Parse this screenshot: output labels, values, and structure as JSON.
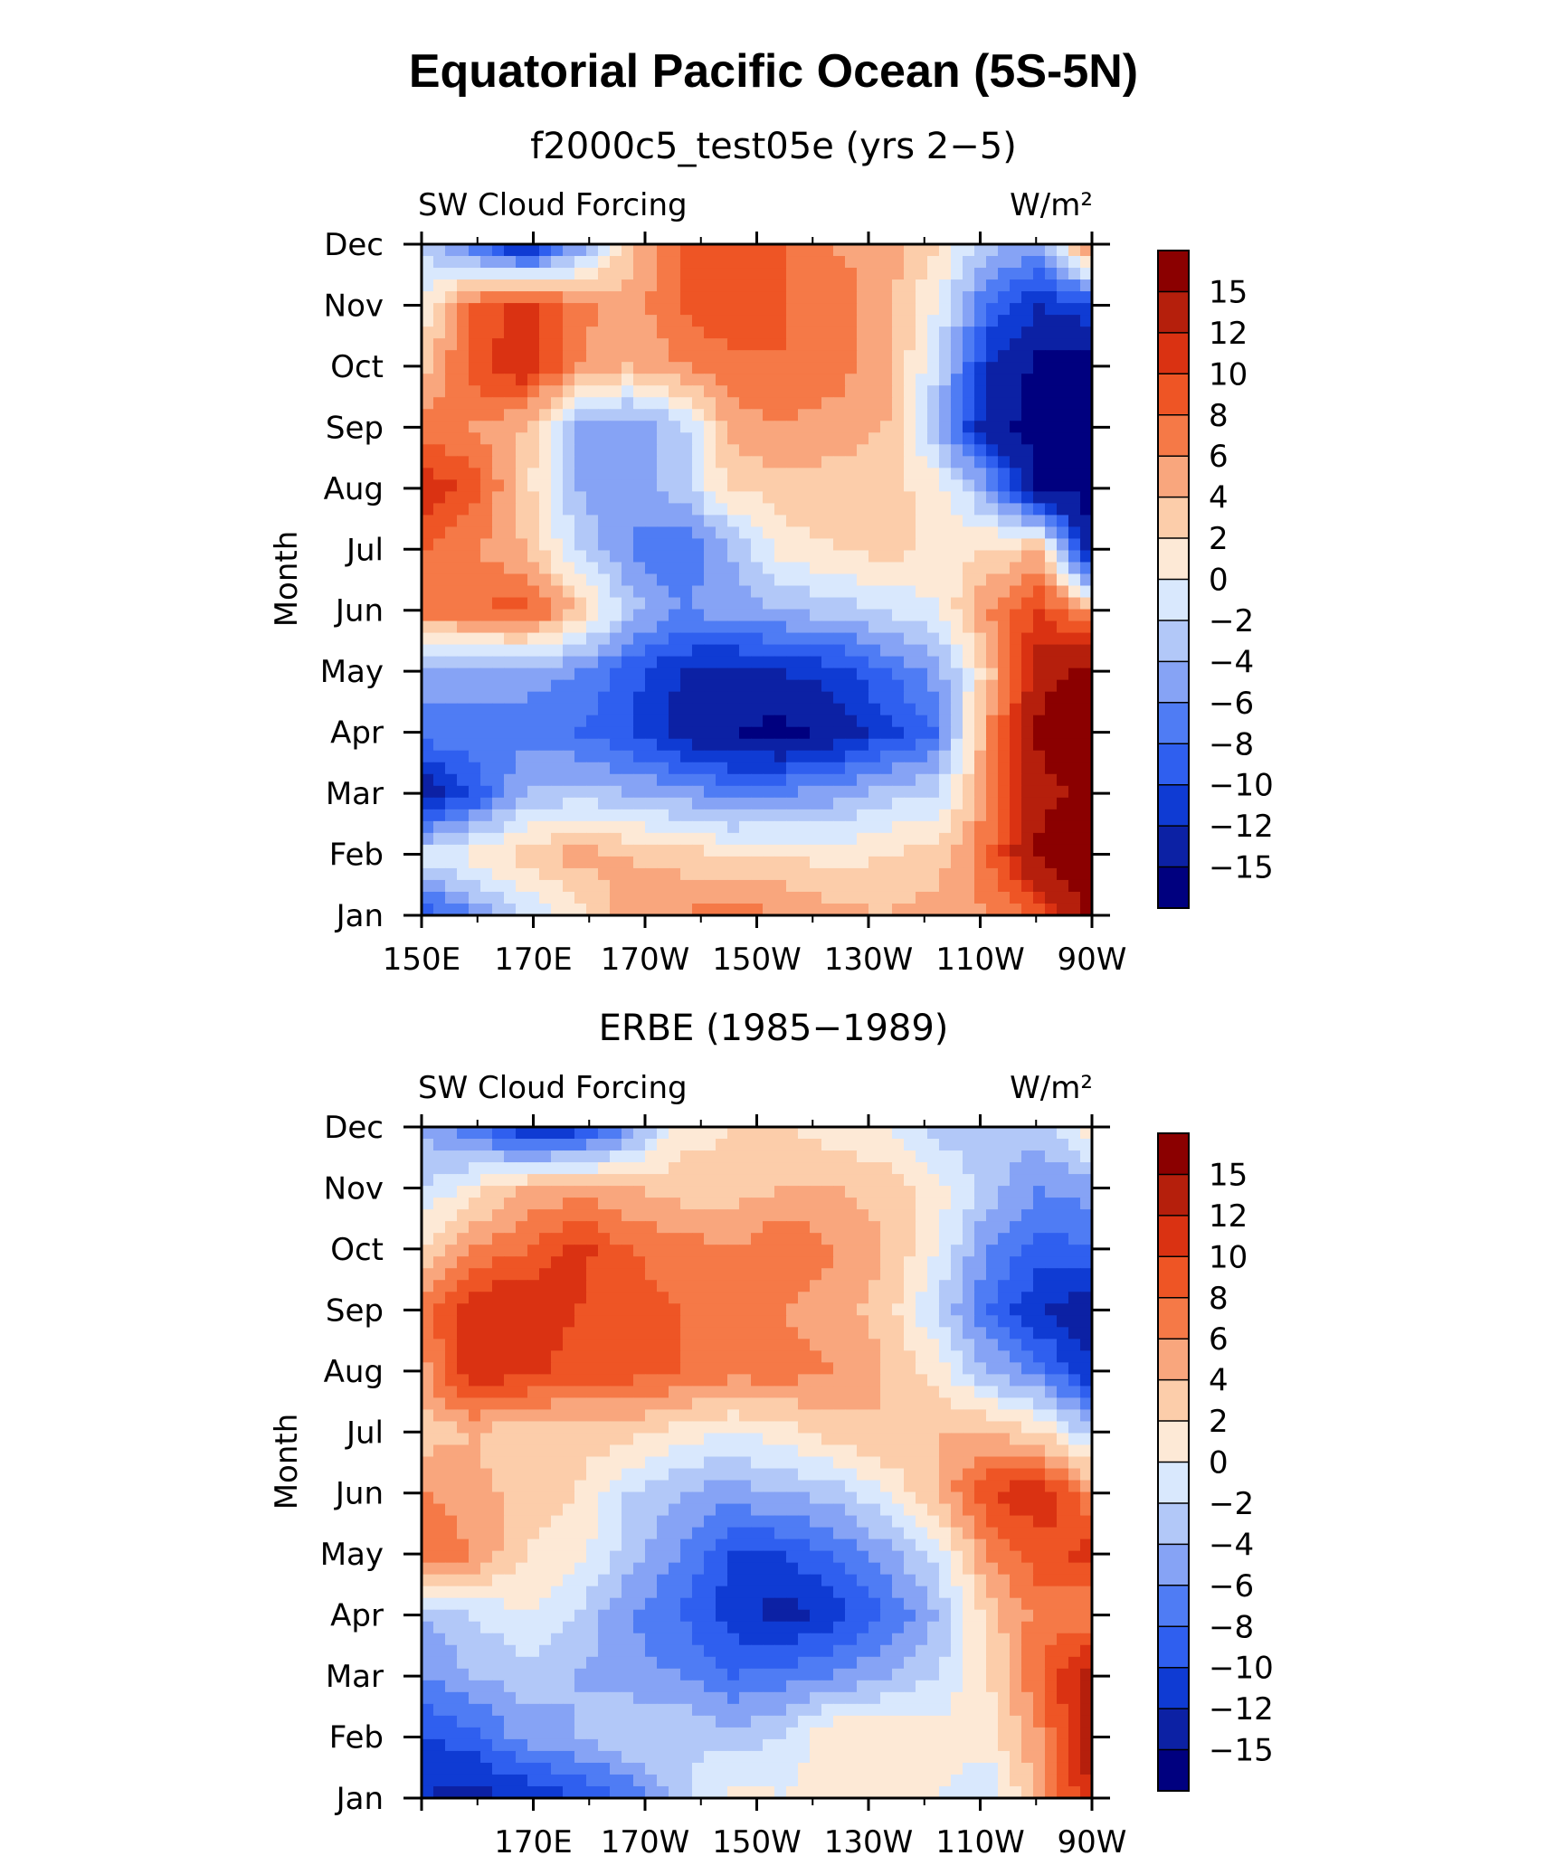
{
  "figure_title": "Equatorial Pacific Ocean (5S-5N)",
  "chart_data": [
    {
      "type": "heatmap",
      "title": "f2000c5_test05e (yrs 2−5)",
      "left_label": "SW Cloud Forcing",
      "right_label": "W/m²",
      "ylabel": "Month",
      "xlabel": "",
      "x_ticks": [
        "150E",
        "170E",
        "170W",
        "150W",
        "130W",
        "110W",
        "90W"
      ],
      "y_ticks": [
        "Jan",
        "Feb",
        "Mar",
        "Apr",
        "May",
        "Jun",
        "Jul",
        "Aug",
        "Sep",
        "Oct",
        "Nov",
        "Dec"
      ],
      "colorbar_labels": [
        "15",
        "12",
        "10",
        "8",
        "6",
        "4",
        "2",
        "0",
        "−2",
        "−4",
        "−6",
        "−8",
        "−10",
        "−12",
        "−15"
      ],
      "grid_values": [
        [
          -10,
          -6,
          -2,
          1,
          5,
          6,
          7,
          6,
          5,
          4,
          5,
          6,
          9,
          16
        ],
        [
          -1,
          1,
          3,
          5,
          4,
          3,
          2,
          2,
          1,
          2,
          3,
          8,
          16,
          18
        ],
        [
          -14,
          -10,
          -4,
          -3,
          -4,
          -5,
          -7,
          -6,
          -5,
          -3,
          -2,
          6,
          14,
          16
        ],
        [
          -7,
          -6,
          -7,
          -8,
          -10,
          -13,
          -15,
          -16,
          -14,
          -11,
          -8,
          6,
          16,
          16
        ],
        [
          -5,
          -6,
          -5,
          -6,
          -9,
          -12,
          -13,
          -12,
          -11,
          -8,
          -5,
          3,
          14,
          16
        ],
        [
          7,
          8,
          9,
          4,
          -3,
          -6,
          -5,
          -4,
          -3,
          -2,
          0,
          6,
          10,
          5
        ],
        [
          8,
          6,
          4,
          -2,
          -6,
          -8,
          -4,
          1,
          2,
          3,
          1,
          2,
          4,
          -16
        ],
        [
          12,
          9,
          3,
          -4,
          -6,
          -3,
          2,
          3,
          3,
          3,
          1,
          -5,
          -16,
          -16
        ],
        [
          7,
          6,
          4,
          -5,
          -6,
          -3,
          5,
          6,
          5,
          4,
          -4,
          -14,
          -16,
          -16
        ],
        [
          3,
          9,
          12,
          6,
          4,
          6,
          7,
          8,
          7,
          5,
          -2,
          -12,
          -16,
          -16
        ],
        [
          0,
          8,
          11,
          7,
          5,
          8,
          10,
          8,
          7,
          5,
          0,
          -8,
          -12,
          -10
        ],
        [
          -2,
          -8,
          -14,
          -6,
          3,
          8,
          10,
          8,
          6,
          5,
          2,
          -3,
          -5,
          8
        ]
      ]
    },
    {
      "type": "heatmap",
      "title": "ERBE (1985−1989)",
      "left_label": "SW Cloud Forcing",
      "right_label": "W/m²",
      "ylabel": "Month",
      "xlabel": "",
      "x_ticks": [
        "",
        "170E",
        "170W",
        "150W",
        "130W",
        "110W",
        "90W"
      ],
      "y_ticks": [
        "Jan",
        "Feb",
        "Mar",
        "Apr",
        "May",
        "Jun",
        "Jul",
        "Aug",
        "Sep",
        "Oct",
        "Nov",
        "Dec"
      ],
      "colorbar_labels": [
        "15",
        "12",
        "10",
        "8",
        "6",
        "4",
        "2",
        "0",
        "−2",
        "−4",
        "−6",
        "−8",
        "−10",
        "−12",
        "−15"
      ],
      "grid_values": [
        [
          -12,
          -13,
          -12,
          -10,
          -8,
          -3,
          1,
          0,
          1,
          0,
          0,
          -2,
          5,
          12
        ],
        [
          -10,
          -9,
          -5,
          -4,
          -2,
          -2,
          -3,
          -2,
          2,
          2,
          1,
          1,
          6,
          14
        ],
        [
          -6,
          -4,
          -3,
          -4,
          -5,
          -6,
          -8,
          -7,
          -6,
          -4,
          -2,
          2,
          8,
          14
        ],
        [
          -4,
          -2,
          0,
          -2,
          -6,
          -8,
          -11,
          -13,
          -11,
          -8,
          -4,
          3,
          7,
          6
        ],
        [
          8,
          6,
          2,
          1,
          -3,
          -6,
          -10,
          -10,
          -8,
          -5,
          -1,
          6,
          9,
          11
        ],
        [
          6,
          5,
          3,
          2,
          -2,
          -4,
          -5,
          -4,
          -3,
          0,
          4,
          10,
          12,
          6
        ],
        [
          3,
          4,
          2,
          3,
          3,
          1,
          0,
          1,
          3,
          4,
          4,
          4,
          2,
          -3
        ],
        [
          5,
          12,
          11,
          9,
          9,
          8,
          7,
          7,
          6,
          4,
          1,
          -4,
          -7,
          -12
        ],
        [
          7,
          12,
          12,
          10,
          9,
          8,
          7,
          6,
          5,
          3,
          -2,
          -8,
          -12,
          -14
        ],
        [
          2,
          6,
          8,
          11,
          8,
          7,
          6,
          8,
          6,
          4,
          0,
          -6,
          -9,
          -8
        ],
        [
          -2,
          1,
          4,
          5,
          4,
          3,
          3,
          4,
          4,
          3,
          1,
          -3,
          -6,
          -5
        ],
        [
          -4,
          -8,
          -12,
          -12,
          -6,
          1,
          2,
          2,
          1,
          0,
          -3,
          -4,
          -3,
          2
        ]
      ]
    }
  ],
  "palette": [
    "#00007f",
    "#0c21a4",
    "#0f3bd3",
    "#2f5fef",
    "#4f7cf4",
    "#86a3f5",
    "#b2c8f8",
    "#d9e8fd",
    "#fde9d6",
    "#fccdaa",
    "#f9a67d",
    "#f57947",
    "#ee5525",
    "#da3212",
    "#b51f0c",
    "#8b0000"
  ],
  "thresholds": [
    -15,
    -12,
    -10,
    -8,
    -6,
    -4,
    -2,
    0,
    2,
    4,
    6,
    8,
    10,
    12,
    15
  ]
}
